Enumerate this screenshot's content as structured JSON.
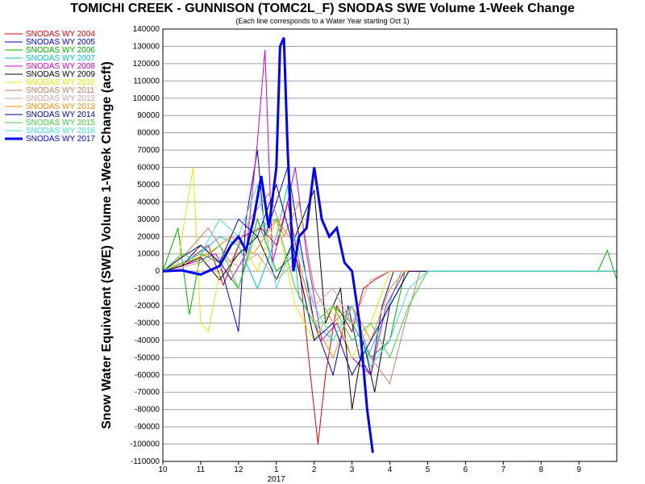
{
  "chart_data": {
    "type": "line",
    "title": "TOMICHI CREEK - GUNNISON (TOMC2L_F) SNODAS SWE Volume 1-Week Change",
    "subtitle": "(Each line corresponds to a Water Year starting Oct 1)",
    "ylabel": "Snow Water Equivalent (SWE) Volume 1-Week Change (acft)",
    "xlabel": "",
    "ylim": [
      -110000,
      140000
    ],
    "y_ticks": [
      140000,
      130000,
      120000,
      110000,
      100000,
      90000,
      80000,
      70000,
      60000,
      50000,
      40000,
      30000,
      20000,
      10000,
      0,
      -10000,
      -20000,
      -30000,
      -40000,
      -50000,
      -60000,
      -70000,
      -80000,
      -90000,
      -100000,
      -110000
    ],
    "x_ticks": [
      "10",
      "11",
      "12",
      "1",
      "2",
      "3",
      "4",
      "5",
      "6",
      "7",
      "8",
      "9"
    ],
    "x_year_label": "2017",
    "xlim_months": [
      0,
      12
    ],
    "grid": true,
    "legend_position": "left",
    "series": [
      {
        "name": "SNODAS WY 2004",
        "color": "#e00000",
        "points": [
          [
            0,
            0
          ],
          [
            0.6,
            5000
          ],
          [
            1.2,
            15000
          ],
          [
            1.6,
            -8000
          ],
          [
            2.1,
            20000
          ],
          [
            2.6,
            25000
          ],
          [
            3.0,
            15000
          ],
          [
            3.3,
            40000
          ],
          [
            3.6,
            5000
          ],
          [
            3.9,
            -60000
          ],
          [
            4.1,
            -100000
          ],
          [
            4.3,
            -60000
          ],
          [
            4.6,
            -20000
          ],
          [
            5.0,
            -35000
          ],
          [
            5.3,
            -10000
          ],
          [
            5.6,
            -5000
          ],
          [
            6.0,
            0
          ],
          [
            12,
            0
          ]
        ]
      },
      {
        "name": "SNODAS WY 2005",
        "color": "#0000d0",
        "points": [
          [
            0,
            0
          ],
          [
            0.5,
            3000
          ],
          [
            1.0,
            15000
          ],
          [
            1.5,
            5000
          ],
          [
            2.0,
            -35000
          ],
          [
            2.2,
            30000
          ],
          [
            2.5,
            70000
          ],
          [
            2.7,
            20000
          ],
          [
            3.0,
            40000
          ],
          [
            3.3,
            60000
          ],
          [
            3.6,
            20000
          ],
          [
            4.0,
            -30000
          ],
          [
            4.5,
            -60000
          ],
          [
            4.9,
            -20000
          ],
          [
            5.2,
            -50000
          ],
          [
            5.5,
            -60000
          ],
          [
            5.8,
            -20000
          ],
          [
            6.1,
            0
          ],
          [
            12,
            0
          ]
        ]
      },
      {
        "name": "SNODAS WY 2006",
        "color": "#00b000",
        "points": [
          [
            0,
            0
          ],
          [
            0.4,
            25000
          ],
          [
            0.7,
            -25000
          ],
          [
            1.0,
            10000
          ],
          [
            1.5,
            5000
          ],
          [
            2.0,
            -10000
          ],
          [
            2.5,
            30000
          ],
          [
            3.0,
            0
          ],
          [
            3.5,
            10000
          ],
          [
            4.0,
            -40000
          ],
          [
            4.5,
            -20000
          ],
          [
            5.0,
            -30000
          ],
          [
            5.5,
            -50000
          ],
          [
            6.0,
            -40000
          ],
          [
            6.4,
            0
          ],
          [
            11.5,
            0
          ],
          [
            11.75,
            12000
          ],
          [
            12,
            -5000
          ]
        ]
      },
      {
        "name": "SNODAS WY 2007",
        "color": "#00c8c8",
        "points": [
          [
            0,
            0
          ],
          [
            0.5,
            5000
          ],
          [
            1.0,
            10000
          ],
          [
            1.5,
            20000
          ],
          [
            2.0,
            15000
          ],
          [
            2.5,
            -10000
          ],
          [
            3.0,
            20000
          ],
          [
            3.3,
            50000
          ],
          [
            3.6,
            -15000
          ],
          [
            4.0,
            -30000
          ],
          [
            4.5,
            -40000
          ],
          [
            5.0,
            -20000
          ],
          [
            5.4,
            -50000
          ],
          [
            5.8,
            -30000
          ],
          [
            6.3,
            0
          ],
          [
            12,
            0
          ]
        ]
      },
      {
        "name": "SNODAS WY 2008",
        "color": "#d000d0",
        "points": [
          [
            0,
            0
          ],
          [
            0.8,
            5000
          ],
          [
            1.4,
            10000
          ],
          [
            1.8,
            -5000
          ],
          [
            2.2,
            10000
          ],
          [
            2.5,
            75000
          ],
          [
            2.7,
            128000
          ],
          [
            2.9,
            5000
          ],
          [
            3.2,
            30000
          ],
          [
            3.5,
            60000
          ],
          [
            3.8,
            10000
          ],
          [
            4.2,
            -40000
          ],
          [
            4.6,
            -30000
          ],
          [
            5.0,
            -50000
          ],
          [
            5.5,
            -60000
          ],
          [
            5.9,
            -20000
          ],
          [
            6.4,
            0
          ],
          [
            12,
            0
          ]
        ]
      },
      {
        "name": "SNODAS WY 2009",
        "color": "#000000",
        "points": [
          [
            0,
            0
          ],
          [
            0.5,
            3000
          ],
          [
            1.0,
            8000
          ],
          [
            1.5,
            -5000
          ],
          [
            2.0,
            10000
          ],
          [
            2.5,
            20000
          ],
          [
            3.0,
            -5000
          ],
          [
            3.5,
            20000
          ],
          [
            4.0,
            47000
          ],
          [
            4.3,
            -30000
          ],
          [
            4.7,
            -10000
          ],
          [
            5.0,
            -80000
          ],
          [
            5.3,
            -40000
          ],
          [
            5.6,
            -70000
          ],
          [
            6.0,
            -20000
          ],
          [
            6.5,
            0
          ],
          [
            12,
            0
          ]
        ]
      },
      {
        "name": "SNODAS WY 2010",
        "color": "#e8e800",
        "points": [
          [
            0,
            0
          ],
          [
            0.4,
            5000
          ],
          [
            0.8,
            60000
          ],
          [
            1.0,
            -30000
          ],
          [
            1.2,
            -35000
          ],
          [
            1.6,
            10000
          ],
          [
            2.0,
            20000
          ],
          [
            2.5,
            0
          ],
          [
            3.0,
            30000
          ],
          [
            3.5,
            -20000
          ],
          [
            4.0,
            -40000
          ],
          [
            4.5,
            -20000
          ],
          [
            5.0,
            -50000
          ],
          [
            5.5,
            -30000
          ],
          [
            6.0,
            0
          ],
          [
            12,
            0
          ]
        ]
      },
      {
        "name": "SNODAS WY 2011",
        "color": "#c08060",
        "points": [
          [
            0,
            0
          ],
          [
            0.6,
            10000
          ],
          [
            1.2,
            25000
          ],
          [
            1.8,
            5000
          ],
          [
            2.3,
            30000
          ],
          [
            2.8,
            45000
          ],
          [
            3.2,
            20000
          ],
          [
            3.6,
            40000
          ],
          [
            4.0,
            -10000
          ],
          [
            4.5,
            -30000
          ],
          [
            5.0,
            -20000
          ],
          [
            5.5,
            -50000
          ],
          [
            6.0,
            -65000
          ],
          [
            6.4,
            -30000
          ],
          [
            6.8,
            0
          ],
          [
            12,
            0
          ]
        ]
      },
      {
        "name": "SNODAS WY 2012",
        "color": "#d8a0a0",
        "points": [
          [
            0,
            0
          ],
          [
            0.5,
            2000
          ],
          [
            1.0,
            5000
          ],
          [
            1.5,
            8000
          ],
          [
            2.0,
            3000
          ],
          [
            2.5,
            10000
          ],
          [
            3.0,
            -5000
          ],
          [
            3.5,
            5000
          ],
          [
            4.0,
            -20000
          ],
          [
            4.5,
            -10000
          ],
          [
            5.0,
            -30000
          ],
          [
            5.5,
            -5000
          ],
          [
            6.0,
            0
          ],
          [
            12,
            0
          ]
        ]
      },
      {
        "name": "SNODAS WY 2013",
        "color": "#ff8c00",
        "points": [
          [
            0,
            0
          ],
          [
            0.6,
            5000
          ],
          [
            1.2,
            10000
          ],
          [
            1.8,
            20000
          ],
          [
            2.4,
            10000
          ],
          [
            3.0,
            30000
          ],
          [
            3.5,
            15000
          ],
          [
            4.0,
            -30000
          ],
          [
            4.5,
            -50000
          ],
          [
            5.0,
            -20000
          ],
          [
            5.5,
            -40000
          ],
          [
            6.0,
            -10000
          ],
          [
            6.4,
            0
          ],
          [
            12,
            0
          ]
        ]
      },
      {
        "name": "SNODAS WY 2014",
        "color": "#000090",
        "points": [
          [
            0,
            0
          ],
          [
            0.5,
            8000
          ],
          [
            1.0,
            15000
          ],
          [
            1.5,
            5000
          ],
          [
            2.0,
            30000
          ],
          [
            2.5,
            20000
          ],
          [
            3.0,
            50000
          ],
          [
            3.5,
            10000
          ],
          [
            4.0,
            -40000
          ],
          [
            4.5,
            -30000
          ],
          [
            5.0,
            -60000
          ],
          [
            5.5,
            -40000
          ],
          [
            6.0,
            -20000
          ],
          [
            6.5,
            0
          ],
          [
            12,
            0
          ]
        ]
      },
      {
        "name": "SNODAS WY 2015",
        "color": "#40d040",
        "points": [
          [
            0,
            0
          ],
          [
            0.5,
            10000
          ],
          [
            1.0,
            5000
          ],
          [
            1.5,
            15000
          ],
          [
            2.0,
            -10000
          ],
          [
            2.5,
            25000
          ],
          [
            3.0,
            30000
          ],
          [
            3.5,
            -10000
          ],
          [
            4.0,
            -30000
          ],
          [
            4.5,
            -20000
          ],
          [
            5.0,
            -40000
          ],
          [
            5.5,
            -30000
          ],
          [
            6.0,
            -50000
          ],
          [
            6.5,
            -20000
          ],
          [
            7.0,
            0
          ],
          [
            12,
            0
          ]
        ]
      },
      {
        "name": "SNODAS WY 2016",
        "color": "#40e0e0",
        "points": [
          [
            0,
            0
          ],
          [
            0.5,
            5000
          ],
          [
            1.0,
            10000
          ],
          [
            1.5,
            30000
          ],
          [
            2.0,
            20000
          ],
          [
            2.5,
            50000
          ],
          [
            3.0,
            -10000
          ],
          [
            3.5,
            20000
          ],
          [
            4.0,
            -20000
          ],
          [
            4.5,
            -40000
          ],
          [
            5.0,
            -20000
          ],
          [
            5.5,
            -55000
          ],
          [
            6.0,
            -40000
          ],
          [
            6.5,
            -10000
          ],
          [
            7.0,
            0
          ],
          [
            12,
            0
          ]
        ]
      },
      {
        "name": "SNODAS WY 2017",
        "color": "#0000ff",
        "bold": true,
        "points": [
          [
            0,
            0
          ],
          [
            0.5,
            500
          ],
          [
            1.0,
            -2000
          ],
          [
            1.5,
            3000
          ],
          [
            1.8,
            15000
          ],
          [
            2.0,
            20000
          ],
          [
            2.2,
            12000
          ],
          [
            2.4,
            30000
          ],
          [
            2.6,
            55000
          ],
          [
            2.8,
            25000
          ],
          [
            3.0,
            60000
          ],
          [
            3.1,
            130000
          ],
          [
            3.2,
            135000
          ],
          [
            3.3,
            70000
          ],
          [
            3.45,
            0
          ],
          [
            3.6,
            20000
          ],
          [
            3.8,
            25000
          ],
          [
            4.0,
            60000
          ],
          [
            4.2,
            30000
          ],
          [
            4.4,
            20000
          ],
          [
            4.6,
            25000
          ],
          [
            4.8,
            5000
          ],
          [
            5.0,
            0
          ],
          [
            5.2,
            -30000
          ],
          [
            5.4,
            -80000
          ],
          [
            5.55,
            -105000
          ]
        ]
      }
    ]
  }
}
